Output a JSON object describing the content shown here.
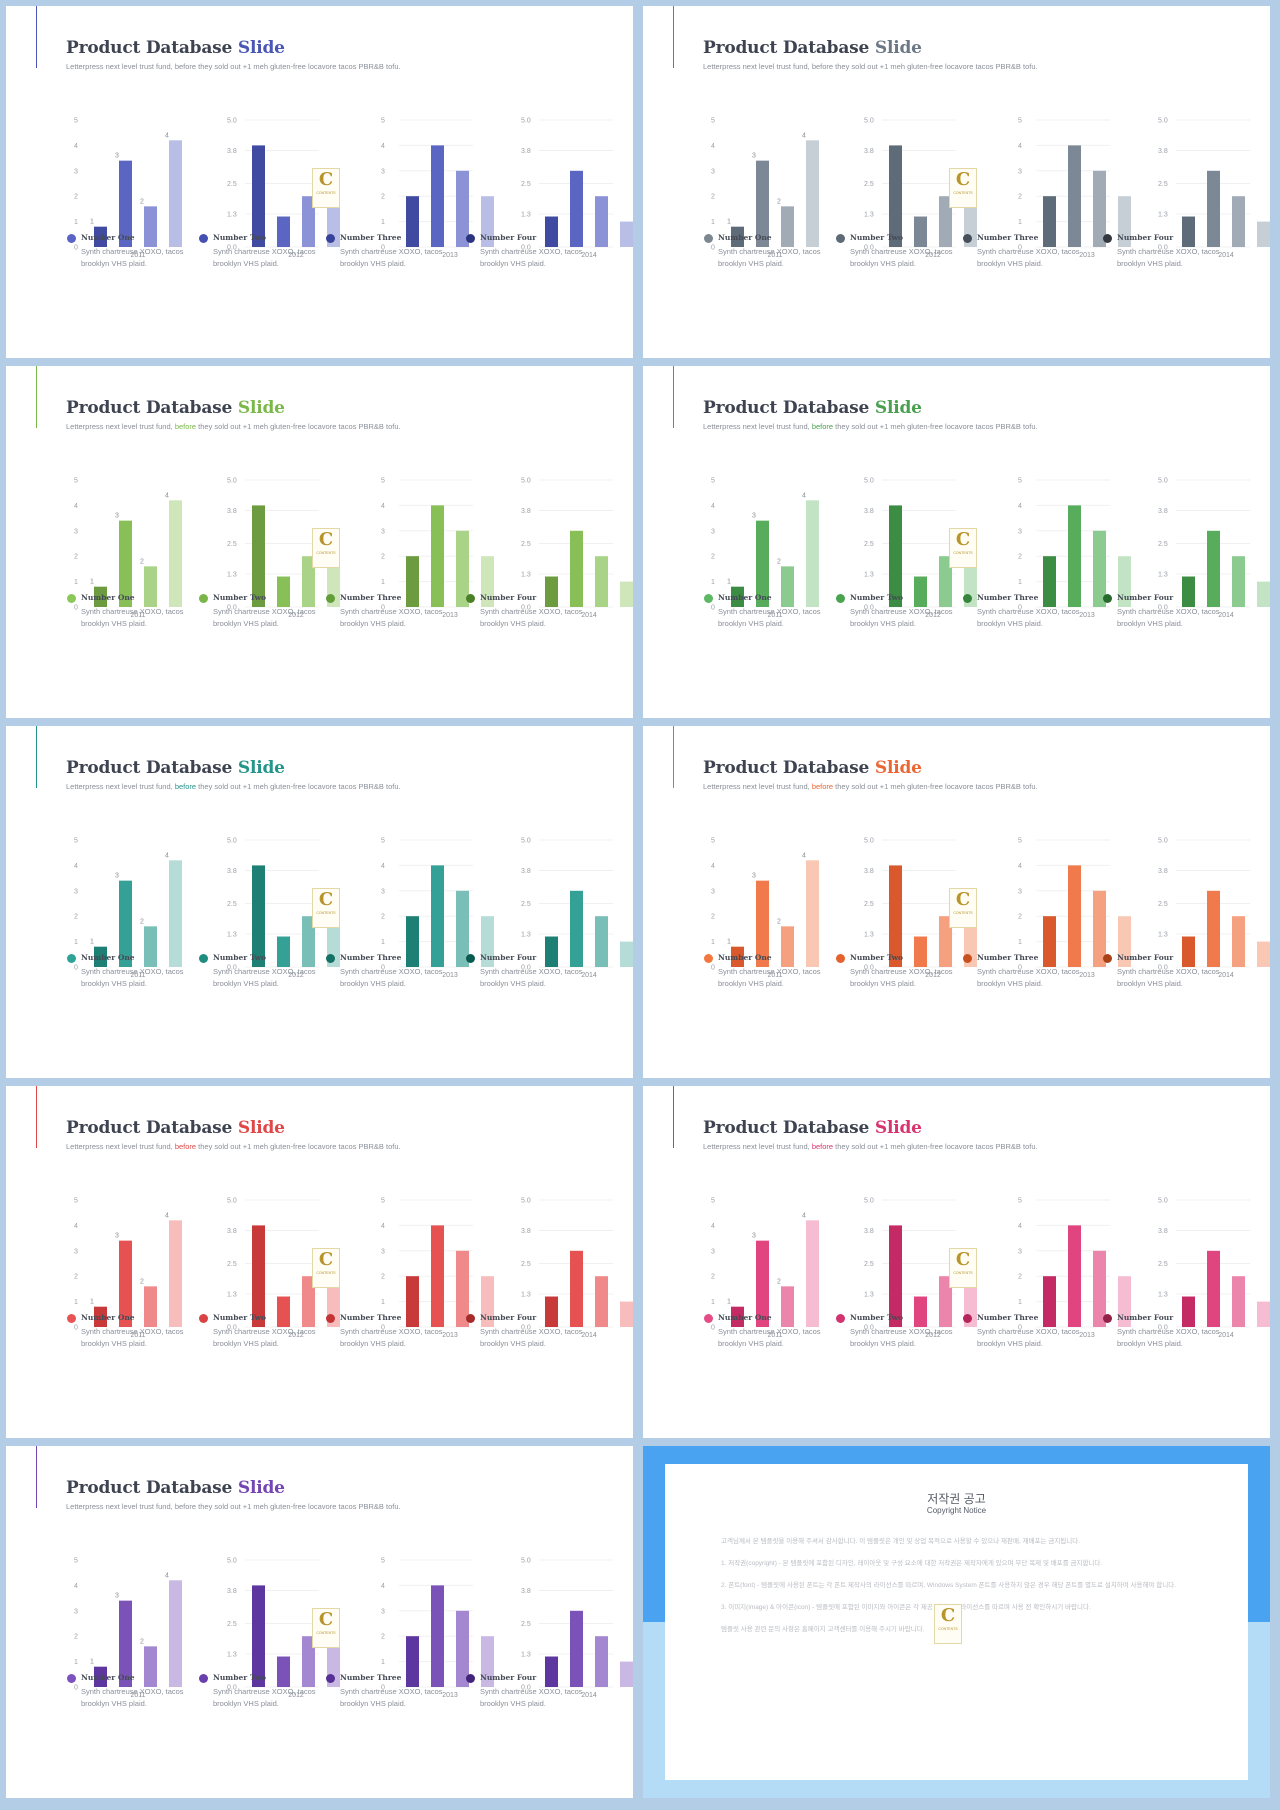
{
  "slide_title_prefix": "Product Database",
  "slide_title_highlight": "Slide",
  "subtitle_parts": [
    "Letterpress next level trust fund, ",
    "before",
    " they sold out +1 meh gluten-free locavore tacos PBR&B tofu."
  ],
  "logo": {
    "letter": "C",
    "text": "CONTENTS"
  },
  "themes": [
    {
      "name": "blue",
      "title_color": "#4a57b4",
      "bar_colors": [
        "#3f4aa0",
        "#5b66c3",
        "#8b93d6",
        "#b9bee7"
      ],
      "legend_colors": [
        "#5a63c7",
        "#4450b2",
        "#37429b",
        "#2b347e"
      ],
      "subtitle_highlight": false
    },
    {
      "name": "gray",
      "title_color": "#6c7885",
      "bar_colors": [
        "#5e6b78",
        "#7c8895",
        "#a1abb5",
        "#c7cfd6"
      ],
      "legend_colors": [
        "#7c8792",
        "#5e6a76",
        "#46505a",
        "#33393f"
      ],
      "subtitle_highlight": false
    },
    {
      "name": "lime",
      "title_color": "#7bb84a",
      "bar_colors": [
        "#6c9c3f",
        "#88bf57",
        "#a9d386",
        "#cfe6bb"
      ],
      "legend_colors": [
        "#8cc75a",
        "#79b548",
        "#629d38",
        "#4a8028"
      ],
      "subtitle_highlight": true
    },
    {
      "name": "green",
      "title_color": "#4a9f50",
      "bar_colors": [
        "#3d8c43",
        "#58ad5d",
        "#8ccb8f",
        "#c3e4c4"
      ],
      "legend_colors": [
        "#5cb862",
        "#49a34f",
        "#37853c",
        "#276a2c"
      ],
      "subtitle_highlight": true
    },
    {
      "name": "teal",
      "title_color": "#24958a",
      "bar_colors": [
        "#1e8074",
        "#35a095",
        "#79bfb7",
        "#b5dcd7"
      ],
      "legend_colors": [
        "#2fa397",
        "#1f8c80",
        "#137166",
        "#0b5a50"
      ],
      "subtitle_highlight": true
    },
    {
      "name": "orange",
      "title_color": "#ec6634",
      "bar_colors": [
        "#d9592c",
        "#f07a4b",
        "#f5a07f",
        "#f9c8b5"
      ],
      "legend_colors": [
        "#f3783f",
        "#e3622d",
        "#c9501f",
        "#a84118"
      ],
      "subtitle_highlight": true
    },
    {
      "name": "red",
      "title_color": "#e04848",
      "bar_colors": [
        "#c83a3a",
        "#e65252",
        "#f08a8a",
        "#f7bcbc"
      ],
      "legend_colors": [
        "#e85353",
        "#d94343",
        "#c33535",
        "#a52a2a"
      ],
      "subtitle_highlight": true
    },
    {
      "name": "pink",
      "title_color": "#d8346f",
      "bar_colors": [
        "#c42a63",
        "#e04580",
        "#ec85ab",
        "#f5bcd2"
      ],
      "legend_colors": [
        "#e44d86",
        "#d23470",
        "#b5255a",
        "#922048"
      ],
      "subtitle_highlight": true
    },
    {
      "name": "purple",
      "title_color": "#7446b3",
      "bar_colors": [
        "#5e36a0",
        "#7a52b8",
        "#a387d0",
        "#c9b8e4"
      ],
      "legend_colors": [
        "#7d51c0",
        "#6a3fae",
        "#563095",
        "#42247a"
      ],
      "subtitle_highlight": false
    }
  ],
  "legend": [
    {
      "title": "Number One",
      "desc": "Synth chartreuse XOXO, tacos brooklyn VHS plaid."
    },
    {
      "title": "Number Two",
      "desc": "Synth chartreuse XOXO, tacos brooklyn VHS plaid."
    },
    {
      "title": "Number Three",
      "desc": "Synth chartreuse XOXO, tacos brooklyn VHS plaid."
    },
    {
      "title": "Number Four",
      "desc": "Synth chartreuse XOXO, tacos brooklyn VHS plaid."
    }
  ],
  "chart_data": [
    {
      "type": "bar",
      "category": "2011",
      "values": [
        0.8,
        3.4,
        1.6,
        4.2
      ],
      "data_labels": [
        "1",
        "3",
        "2",
        "4"
      ],
      "yticks": [
        "0",
        "1",
        "2",
        "3",
        "4",
        "5"
      ],
      "ylim": [
        0,
        5
      ],
      "grid": false
    },
    {
      "type": "bar",
      "category": "2012",
      "values": [
        4.0,
        1.2,
        2.0,
        3.0
      ],
      "data_labels": [],
      "yticks": [
        "0.0",
        "1.3",
        "2.5",
        "3.8",
        "5.0"
      ],
      "ylim": [
        0,
        5
      ],
      "grid": true
    },
    {
      "type": "bar",
      "category": "2013",
      "values": [
        2.0,
        4.0,
        3.0,
        2.0
      ],
      "data_labels": [],
      "yticks": [
        "0",
        "1",
        "2",
        "3",
        "4",
        "5"
      ],
      "ylim": [
        0,
        5
      ],
      "grid": true
    },
    {
      "type": "bar",
      "category": "2014",
      "values": [
        1.2,
        3.0,
        2.0,
        1.0
      ],
      "data_labels": [],
      "yticks": [
        "0.0",
        "1.3",
        "2.5",
        "3.8",
        "5.0"
      ],
      "ylim": [
        0,
        5
      ],
      "grid": true
    }
  ],
  "copyright": {
    "title": "저작권 공고",
    "subtitle": "Copyright Notice",
    "paragraphs": [
      "고객님께서 본 템플릿을 이용해 주셔서 감사합니다. 이 템플릿은 개인 및 상업 목적으로 사용할 수 있으나 재판매, 재배포는 금지됩니다.",
      "1. 저작권(copyright) - 본 템플릿에 포함된 디자인, 레이아웃 및 구성 요소에 대한 저작권은 제작자에게 있으며 무단 복제 및 배포를 금지합니다.",
      "2. 폰트(font) - 템플릿에 사용된 폰트는 각 폰트 제작사의 라이선스를 따르며, Windows System 폰트를 사용하지 않은 경우 해당 폰트를 별도로 설치하여 사용해야 합니다.",
      "3. 이미지(image) & 아이콘(icon) - 템플릿에 포함된 이미지와 아이콘은 각 제공 사이트의 라이선스를 따르며 사용 전 확인하시기 바랍니다.",
      "템플릿 사용 관련 문의 사항은 홈페이지 고객센터를 이용해 주시기 바랍니다."
    ]
  }
}
